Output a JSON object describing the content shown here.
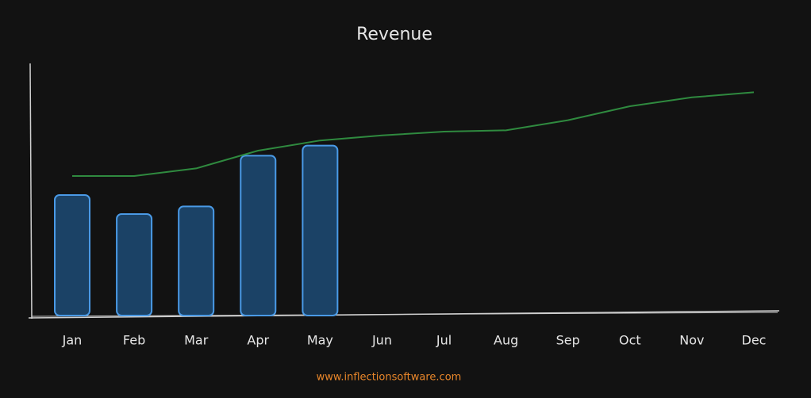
{
  "chart_data": {
    "type": "bar",
    "title": "Revenue",
    "categories": [
      "Jan",
      "Feb",
      "Mar",
      "Apr",
      "May",
      "Jun",
      "Jul",
      "Aug",
      "Sep",
      "Oct",
      "Nov",
      "Dec"
    ],
    "series": [
      {
        "type": "bar",
        "color": "#4a9ae6",
        "values": [
          47.5,
          40,
          43,
          63,
          67,
          null,
          null,
          null,
          null,
          null,
          null,
          null
        ]
      },
      {
        "type": "line",
        "color": "#2f8a3f",
        "values": [
          55,
          55,
          58,
          65,
          69,
          71,
          72.5,
          73,
          77,
          82.5,
          86,
          88
        ]
      }
    ],
    "ylim": [
      0,
      100
    ],
    "footer": "www.inflectionsoftware.com",
    "footer_color": "#e8862a"
  }
}
